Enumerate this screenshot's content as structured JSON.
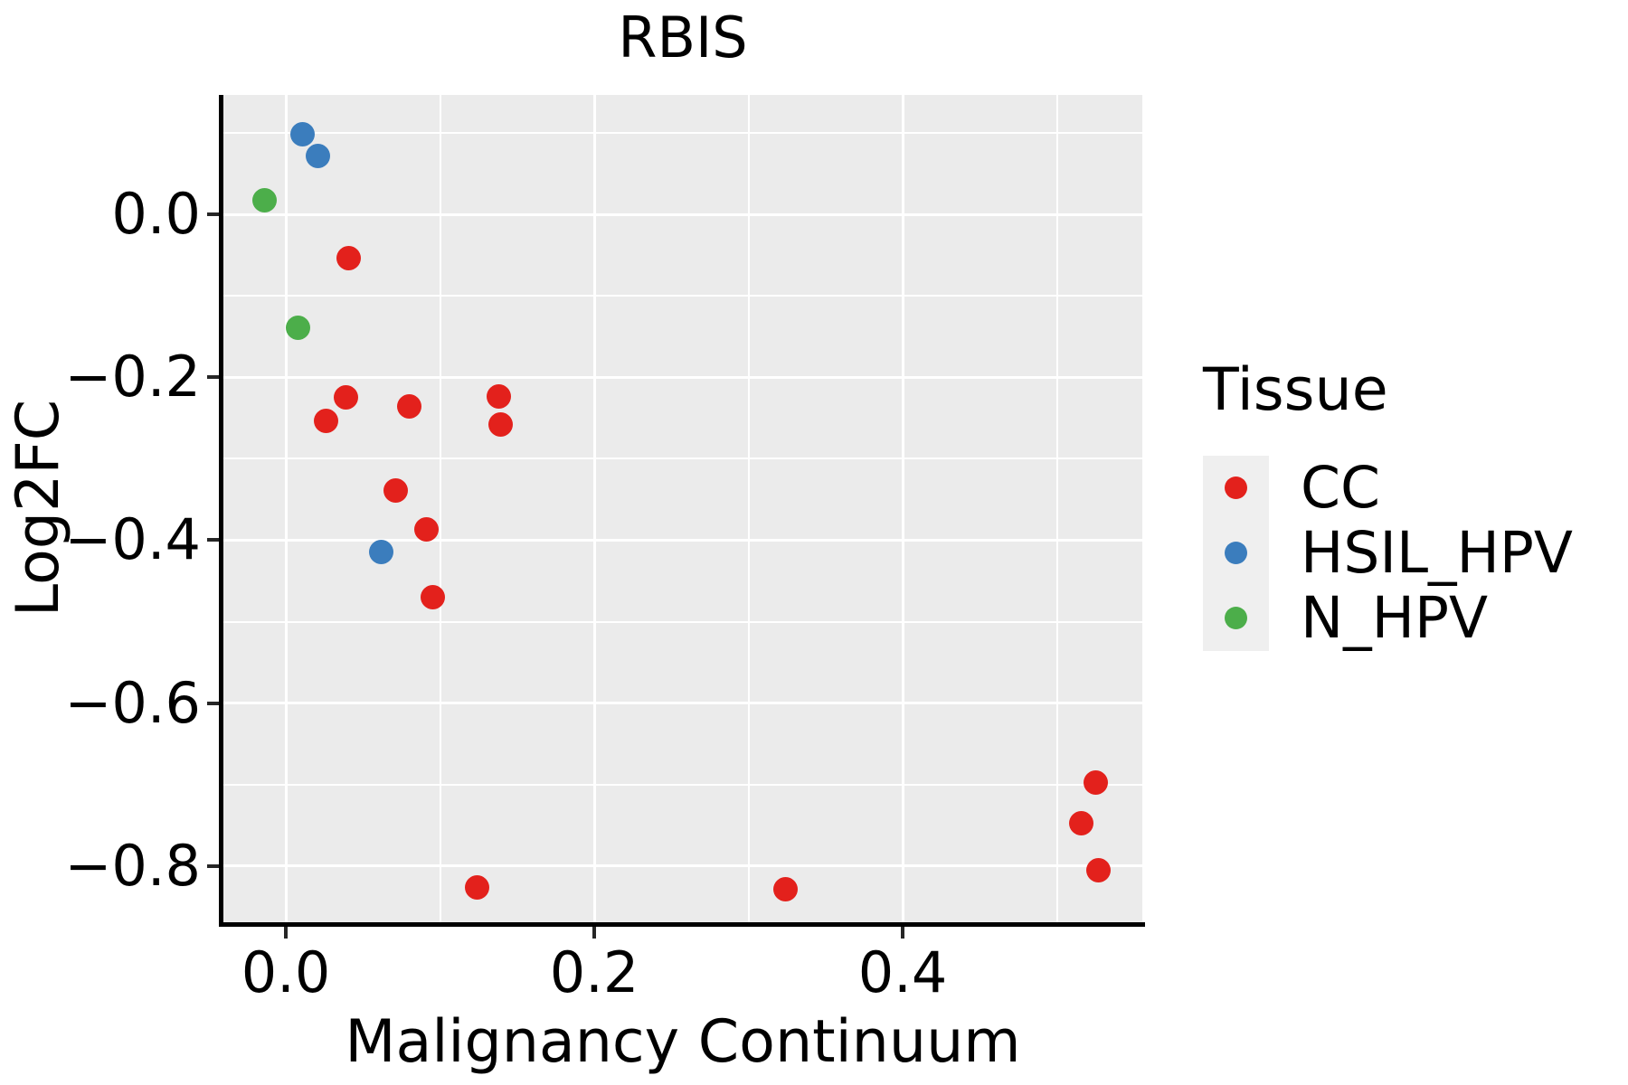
{
  "title": "RBIS",
  "legend": {
    "title": "Tissue",
    "position": "right",
    "items": [
      {
        "label": "CC",
        "color": "#e3211c"
      },
      {
        "label": "HSIL_HPV",
        "color": "#3b7dbd"
      },
      {
        "label": "N_HPV",
        "color": "#4cae4a"
      }
    ]
  },
  "chart_data": {
    "type": "scatter",
    "title": "RBIS",
    "xlabel": "Malignancy Continuum",
    "ylabel": "Log2FC",
    "xlim": [
      -0.0405,
      0.5554
    ],
    "ylim": [
      -0.869,
      0.1465
    ],
    "x_ticks": [
      0.0,
      0.2,
      0.4
    ],
    "x_tick_labels": [
      "0.0",
      "0.2",
      "0.4"
    ],
    "x_minor_ticks": [
      0.1,
      0.3,
      0.5
    ],
    "y_ticks": [
      0.0,
      -0.2,
      -0.4,
      -0.6,
      -0.8
    ],
    "y_tick_labels": [
      "0.0",
      "−0.2",
      "−0.4",
      "−0.6",
      "−0.8"
    ],
    "y_minor_ticks": [
      0.1,
      -0.1,
      -0.3,
      -0.5,
      -0.7
    ],
    "grid": true,
    "panel_background": "#ebebeb",
    "grid_color": "#ffffff",
    "series": [
      {
        "name": "CC",
        "color": "#e3211c",
        "points": [
          [
            0.041,
            -0.054
          ],
          [
            0.039,
            -0.225
          ],
          [
            0.026,
            -0.254
          ],
          [
            0.08,
            -0.236
          ],
          [
            0.138,
            -0.224
          ],
          [
            0.139,
            -0.258
          ],
          [
            0.071,
            -0.339
          ],
          [
            0.091,
            -0.387
          ],
          [
            0.095,
            -0.47
          ],
          [
            0.124,
            -0.826
          ],
          [
            0.324,
            -0.829
          ],
          [
            0.525,
            -0.697
          ],
          [
            0.516,
            -0.748
          ],
          [
            0.527,
            -0.805
          ]
        ]
      },
      {
        "name": "HSIL_HPV",
        "color": "#3b7dbd",
        "points": [
          [
            0.011,
            0.098
          ],
          [
            0.021,
            0.072
          ],
          [
            0.062,
            -0.414
          ]
        ]
      },
      {
        "name": "N_HPV",
        "color": "#4cae4a",
        "points": [
          [
            -0.014,
            0.017
          ],
          [
            0.008,
            -0.139
          ]
        ]
      }
    ]
  }
}
